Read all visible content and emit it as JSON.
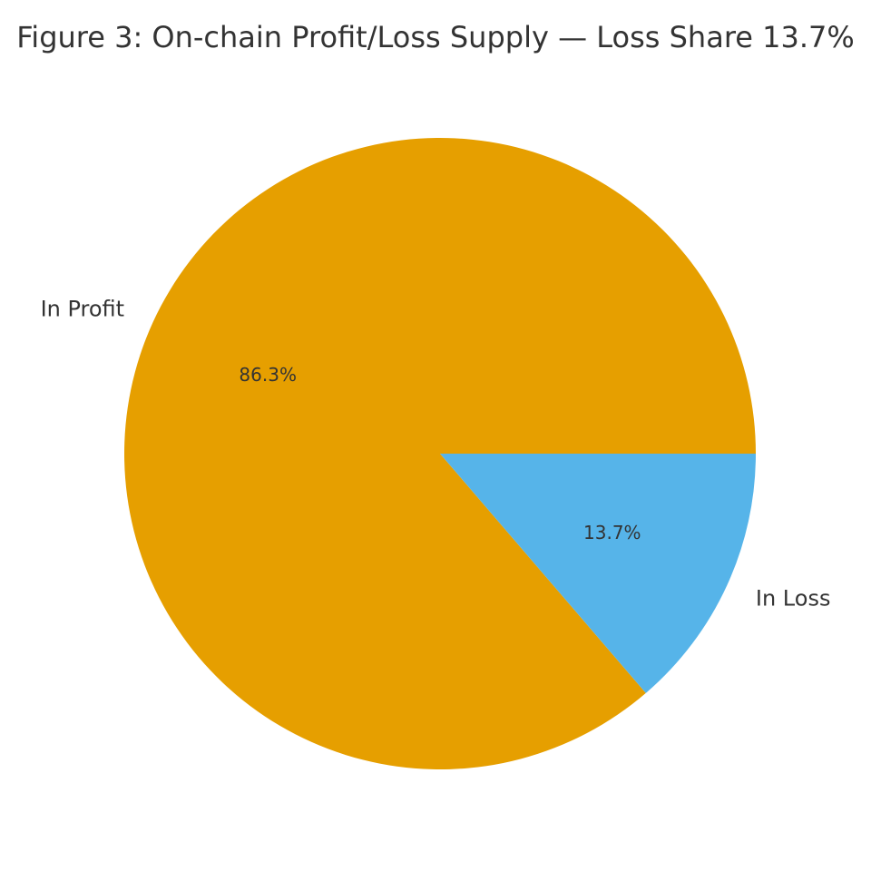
{
  "chart_data": {
    "type": "pie",
    "title": "Figure 3: On-chain Profit/Loss Supply — Loss Share 13.7%",
    "start_angle_deg": 0,
    "direction": "counterclockwise",
    "slices": [
      {
        "label": "In Profit",
        "value": 86.3,
        "pct_label": "86.3%",
        "color": "#E69F00"
      },
      {
        "label": "In Loss",
        "value": 13.7,
        "pct_label": "13.7%",
        "color": "#56B4E9"
      }
    ]
  }
}
